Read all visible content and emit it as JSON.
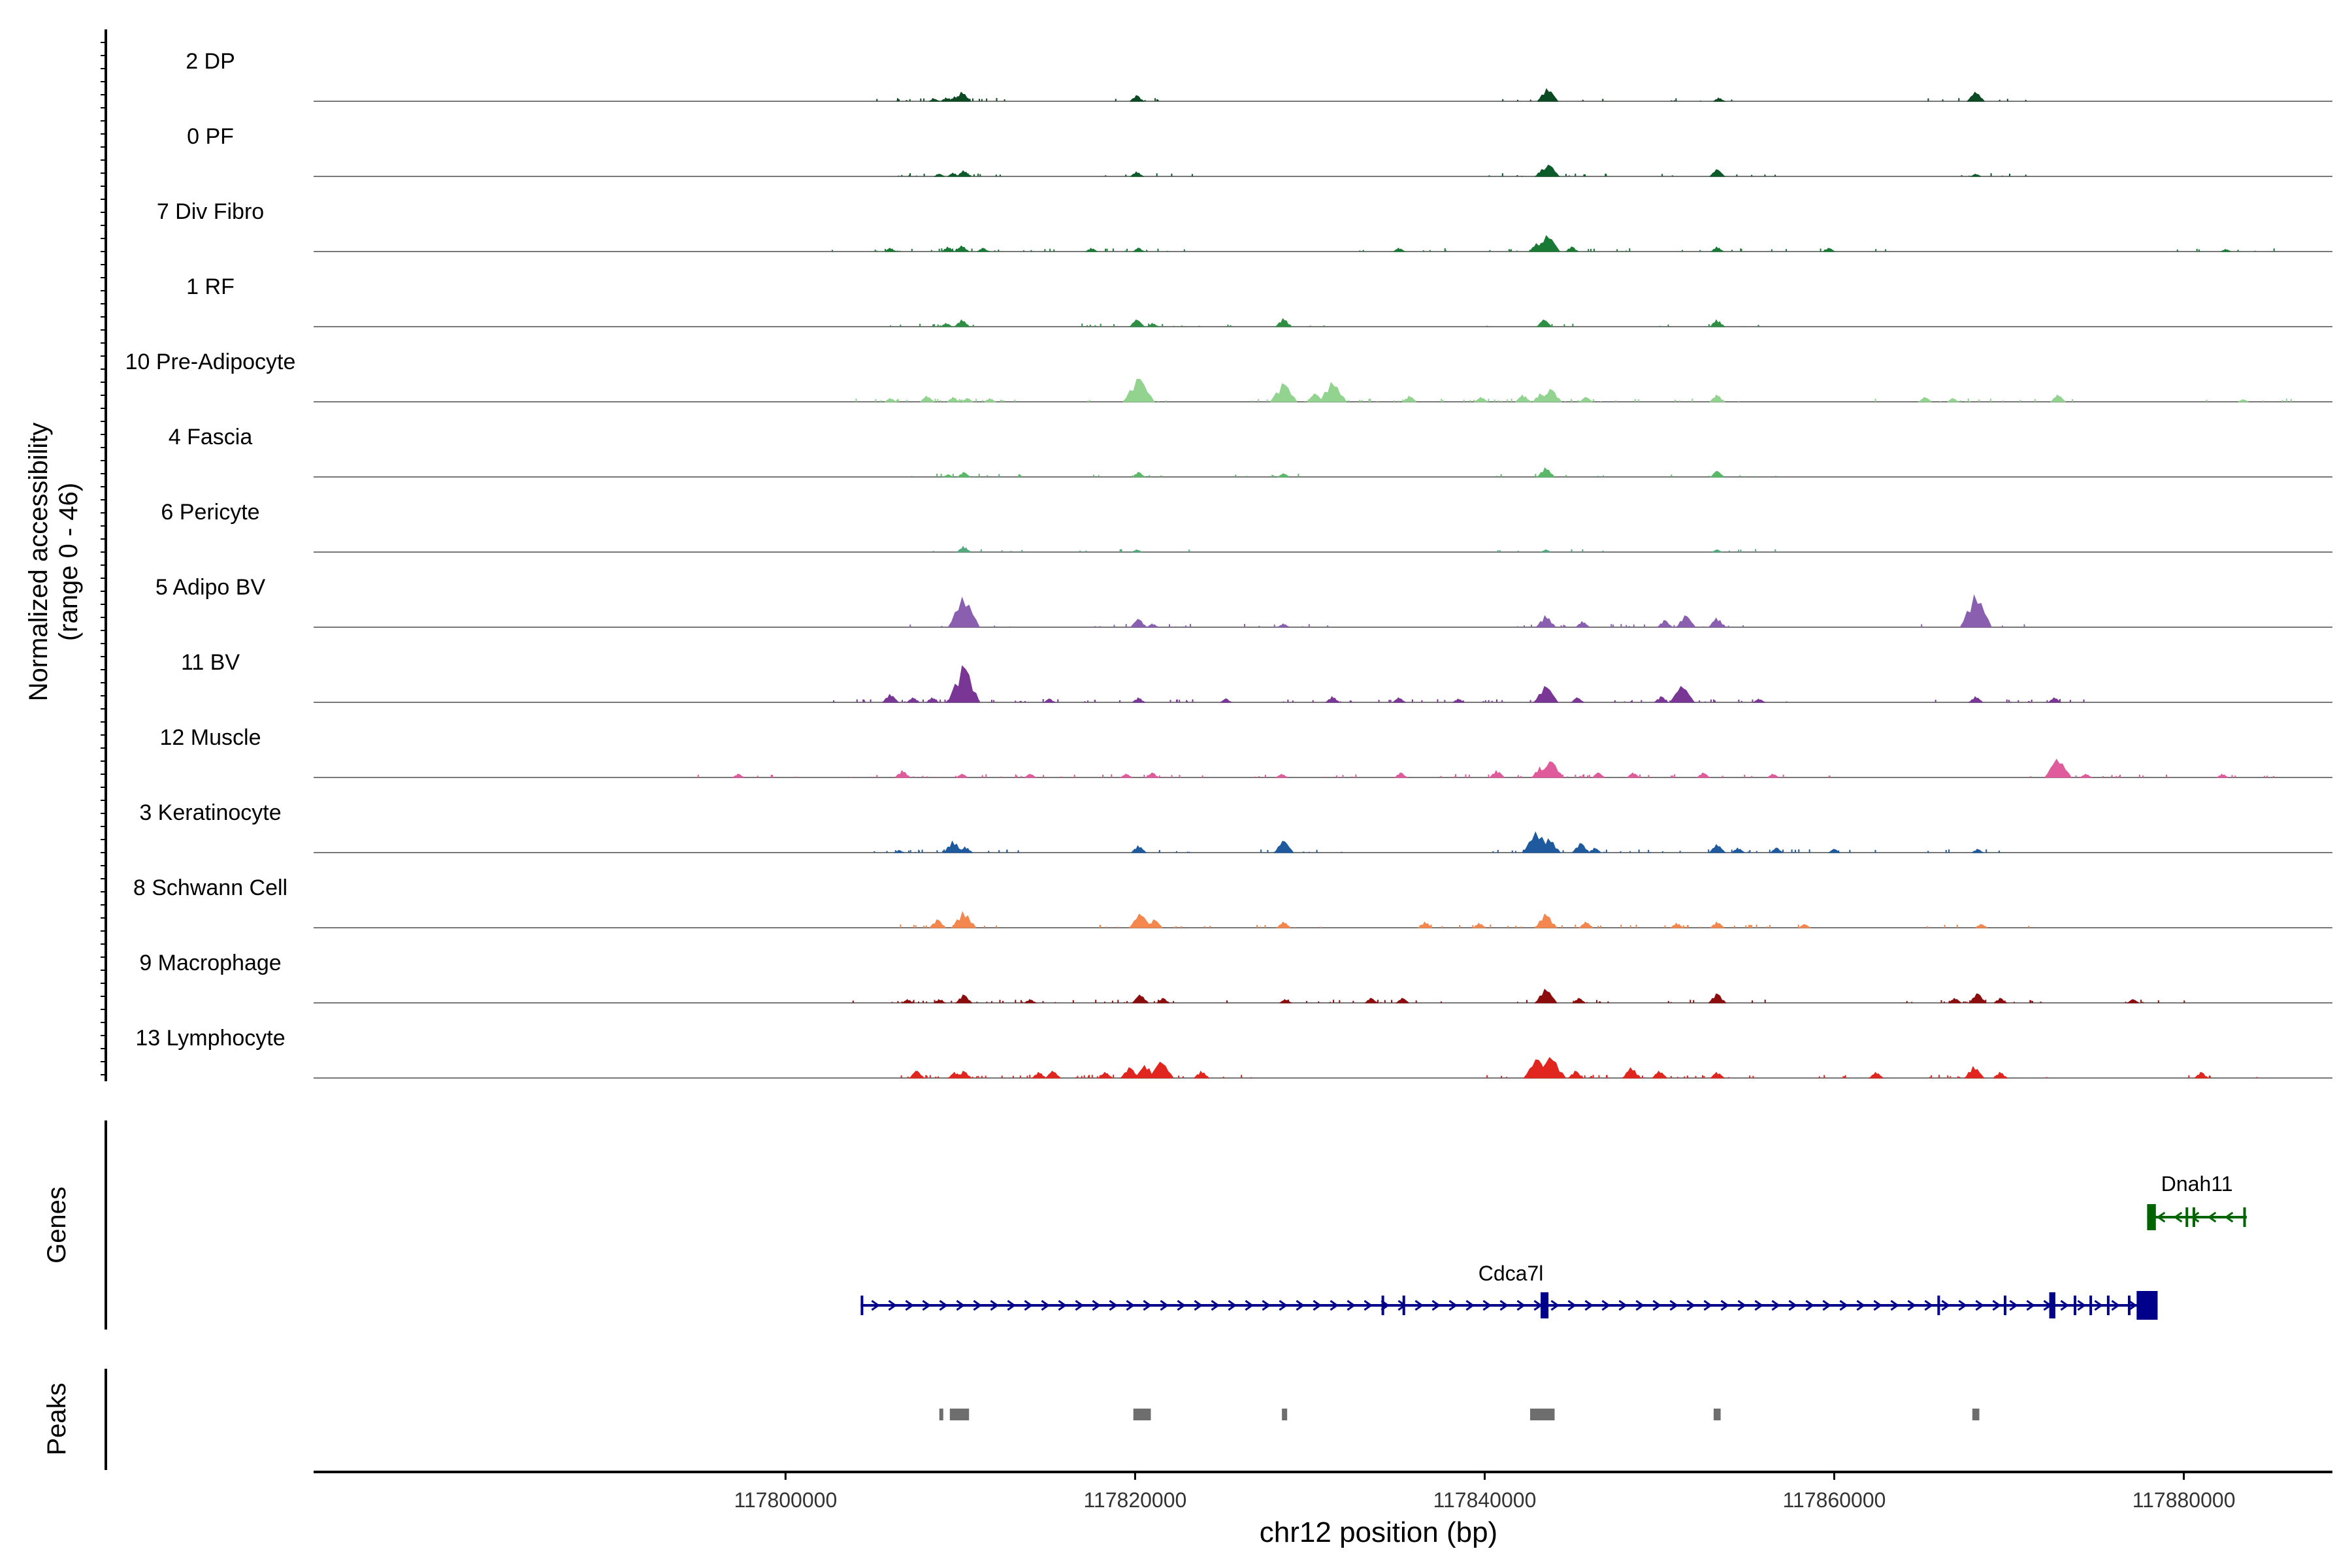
{
  "chart_data": {
    "type": "genome-browser-coverage",
    "chromosome": "chr12",
    "x_range": [
      117773000,
      117888500
    ],
    "xlabel": "chr12 position (bp)",
    "x_ticks": [
      {
        "value": 117800000,
        "label": "117800000"
      },
      {
        "value": 117820000,
        "label": "117820000"
      },
      {
        "value": 117840000,
        "label": "117840000"
      },
      {
        "value": 117860000,
        "label": "117860000"
      },
      {
        "value": 117880000,
        "label": "117880000"
      }
    ],
    "coverage_ylabel": [
      "Normalized accessibility",
      "(range 0 - 46)"
    ],
    "coverage_range": [
      0,
      46
    ],
    "tracks": [
      {
        "name": "2 DP",
        "color": "#0b4a22",
        "peaks": [
          [
            117808500,
            2
          ],
          [
            117809200,
            3
          ],
          [
            117809700,
            4
          ],
          [
            117810100,
            8
          ],
          [
            117820100,
            5
          ],
          [
            117843600,
            11
          ],
          [
            117853400,
            3
          ],
          [
            117868100,
            8
          ]
        ]
      },
      {
        "name": "0 PF",
        "color": "#0d5a2a",
        "peaks": [
          [
            117808800,
            2
          ],
          [
            117809600,
            3
          ],
          [
            117810200,
            5
          ],
          [
            117820100,
            4
          ],
          [
            117843300,
            6
          ],
          [
            117843700,
            10
          ],
          [
            117853300,
            6
          ],
          [
            117868100,
            2
          ]
        ]
      },
      {
        "name": "7 Div Fibro",
        "color": "#197a36",
        "peaks": [
          [
            117806000,
            3
          ],
          [
            117809300,
            4
          ],
          [
            117810100,
            5
          ],
          [
            117811300,
            3
          ],
          [
            117817500,
            3
          ],
          [
            117820200,
            3
          ],
          [
            117835100,
            3
          ],
          [
            117843000,
            7
          ],
          [
            117843600,
            14
          ],
          [
            117845000,
            4
          ],
          [
            117853300,
            4
          ],
          [
            117859700,
            3
          ],
          [
            117882400,
            2
          ]
        ]
      },
      {
        "name": "1 RF",
        "color": "#2f8f44",
        "peaks": [
          [
            117809200,
            3
          ],
          [
            117810100,
            6
          ],
          [
            117820100,
            6
          ],
          [
            117821000,
            3
          ],
          [
            117828500,
            7
          ],
          [
            117843400,
            6
          ],
          [
            117853300,
            6
          ]
        ]
      },
      {
        "name": "10 Pre-Adipocyte",
        "color": "#91d38f",
        "peaks": [
          [
            117806000,
            3
          ],
          [
            117808100,
            5
          ],
          [
            117809600,
            4
          ],
          [
            117810400,
            3
          ],
          [
            117811700,
            3
          ],
          [
            117820200,
            20
          ],
          [
            117828500,
            16
          ],
          [
            117830300,
            7
          ],
          [
            117831300,
            17
          ],
          [
            117835700,
            5
          ],
          [
            117839800,
            4
          ],
          [
            117842200,
            6
          ],
          [
            117843200,
            7
          ],
          [
            117843800,
            11
          ],
          [
            117845800,
            4
          ],
          [
            117853300,
            6
          ],
          [
            117865200,
            4
          ],
          [
            117866800,
            3
          ],
          [
            117872800,
            6
          ],
          [
            117883400,
            2
          ]
        ]
      },
      {
        "name": "4 Fascia",
        "color": "#5bb868",
        "peaks": [
          [
            117809300,
            2
          ],
          [
            117810200,
            4
          ],
          [
            117820200,
            4
          ],
          [
            117828500,
            3
          ],
          [
            117843500,
            8
          ],
          [
            117853300,
            5
          ]
        ]
      },
      {
        "name": "6 Pericyte",
        "color": "#54aa7f",
        "peaks": [
          [
            117810200,
            5
          ],
          [
            117820100,
            2
          ],
          [
            117843500,
            2
          ],
          [
            117853300,
            2
          ]
        ]
      },
      {
        "name": "5 Adipo BV",
        "color": "#8a5fb0",
        "peaks": [
          [
            117810200,
            26
          ],
          [
            117820200,
            7
          ],
          [
            117821000,
            3
          ],
          [
            117828500,
            3
          ],
          [
            117843500,
            10
          ],
          [
            117845600,
            5
          ],
          [
            117850300,
            6
          ],
          [
            117851500,
            10
          ],
          [
            117853300,
            8
          ],
          [
            117868100,
            28
          ]
        ]
      },
      {
        "name": "11 BV",
        "color": "#7a3695",
        "peaks": [
          [
            117806000,
            7
          ],
          [
            117807300,
            4
          ],
          [
            117808400,
            4
          ],
          [
            117809500,
            4
          ],
          [
            117810200,
            32
          ],
          [
            117815100,
            3
          ],
          [
            117820200,
            4
          ],
          [
            117825200,
            3
          ],
          [
            117831300,
            5
          ],
          [
            117835100,
            4
          ],
          [
            117838500,
            3
          ],
          [
            117843500,
            14
          ],
          [
            117845300,
            4
          ],
          [
            117850100,
            5
          ],
          [
            117851300,
            14
          ],
          [
            117855700,
            3
          ],
          [
            117868100,
            5
          ],
          [
            117872600,
            4
          ]
        ]
      },
      {
        "name": "12 Muscle",
        "color": "#e05b9b",
        "peaks": [
          [
            117797300,
            3
          ],
          [
            117806700,
            6
          ],
          [
            117810100,
            3
          ],
          [
            117814000,
            3
          ],
          [
            117819500,
            3
          ],
          [
            117821000,
            4
          ],
          [
            117828400,
            3
          ],
          [
            117835200,
            4
          ],
          [
            117840700,
            6
          ],
          [
            117843200,
            9
          ],
          [
            117843800,
            14
          ],
          [
            117846500,
            4
          ],
          [
            117848500,
            4
          ],
          [
            117852500,
            4
          ],
          [
            117856500,
            3
          ],
          [
            117872800,
            16
          ],
          [
            117874400,
            3
          ],
          [
            117882200,
            3
          ]
        ]
      },
      {
        "name": "3 Keratinocyte",
        "color": "#1f5a9e",
        "peaks": [
          [
            117806500,
            2
          ],
          [
            117809600,
            10
          ],
          [
            117810300,
            5
          ],
          [
            117820200,
            6
          ],
          [
            117828500,
            10
          ],
          [
            117843000,
            18
          ],
          [
            117843700,
            12
          ],
          [
            117845500,
            8
          ],
          [
            117846300,
            4
          ],
          [
            117853300,
            7
          ],
          [
            117854500,
            4
          ],
          [
            117856700,
            4
          ],
          [
            117860000,
            3
          ],
          [
            117868200,
            3
          ]
        ]
      },
      {
        "name": "8 Schwann Cell",
        "color": "#f4874e",
        "peaks": [
          [
            117808700,
            7
          ],
          [
            117810200,
            14
          ],
          [
            117820300,
            12
          ],
          [
            117821100,
            7
          ],
          [
            117828500,
            5
          ],
          [
            117836600,
            5
          ],
          [
            117839700,
            4
          ],
          [
            117843500,
            12
          ],
          [
            117845800,
            5
          ],
          [
            117851000,
            4
          ],
          [
            117853300,
            5
          ],
          [
            117858300,
            3
          ],
          [
            117868400,
            3
          ]
        ]
      },
      {
        "name": "9 Macrophage",
        "color": "#8c0d0d",
        "peaks": [
          [
            117807000,
            3
          ],
          [
            117808800,
            3
          ],
          [
            117810200,
            7
          ],
          [
            117814000,
            3
          ],
          [
            117820300,
            7
          ],
          [
            117821600,
            4
          ],
          [
            117828600,
            3
          ],
          [
            117833500,
            4
          ],
          [
            117835300,
            4
          ],
          [
            117843500,
            12
          ],
          [
            117845400,
            4
          ],
          [
            117853300,
            8
          ],
          [
            117866900,
            4
          ],
          [
            117868200,
            8
          ],
          [
            117869500,
            4
          ],
          [
            117877100,
            3
          ]
        ]
      },
      {
        "name": "13 Lymphocyte",
        "color": "#e0261e",
        "peaks": [
          [
            117807500,
            6
          ],
          [
            117809700,
            5
          ],
          [
            117810200,
            6
          ],
          [
            117814500,
            5
          ],
          [
            117815300,
            6
          ],
          [
            117818300,
            5
          ],
          [
            117819700,
            9
          ],
          [
            117820600,
            11
          ],
          [
            117821500,
            14
          ],
          [
            117823800,
            6
          ],
          [
            117843000,
            16
          ],
          [
            117843800,
            18
          ],
          [
            117845200,
            6
          ],
          [
            117848400,
            9
          ],
          [
            117850000,
            6
          ],
          [
            117853300,
            5
          ],
          [
            117862400,
            5
          ],
          [
            117868000,
            10
          ],
          [
            117869500,
            5
          ],
          [
            117881000,
            5
          ]
        ]
      }
    ],
    "genes_label": "Genes",
    "genes": [
      {
        "name": "Cdca7l",
        "strand": "+",
        "color": "#00008b",
        "start": 117804300,
        "end": 117878500,
        "exons": [
          [
            117804300,
            117804420
          ],
          [
            117834100,
            117834220
          ],
          [
            117835300,
            117835400
          ],
          [
            117843200,
            117843650
          ],
          [
            117865900,
            117866000
          ],
          [
            117869700,
            117869800
          ],
          [
            117872300,
            117872650
          ],
          [
            117873700,
            117873800
          ],
          [
            117874600,
            117874700
          ],
          [
            117875600,
            117875700
          ],
          [
            117876800,
            117876900
          ],
          [
            117877300,
            117878500
          ]
        ]
      },
      {
        "name": "Dnah11",
        "strand": "-",
        "color": "#006400",
        "start": 117877900,
        "end": 117883600,
        "exons": [
          [
            117877900,
            117878400
          ],
          [
            117880100,
            117880180
          ],
          [
            117880500,
            117880580
          ],
          [
            117883400,
            117883500
          ]
        ]
      }
    ],
    "peaks_label": "Peaks",
    "peak_regions": [
      [
        117808800,
        117809000
      ],
      [
        117809400,
        117810500
      ],
      [
        117819900,
        117820900
      ],
      [
        117828400,
        117828700
      ],
      [
        117842600,
        117844000
      ],
      [
        117853100,
        117853500
      ],
      [
        117867900,
        117868300
      ]
    ]
  }
}
